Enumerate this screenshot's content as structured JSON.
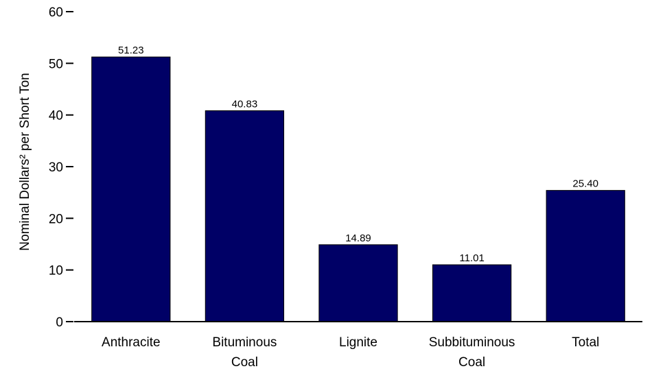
{
  "chart_data": {
    "type": "bar",
    "categories": [
      [
        "Anthracite"
      ],
      [
        "Bituminous",
        "Coal"
      ],
      [
        "Lignite"
      ],
      [
        "Subbituminous",
        "Coal"
      ],
      [
        "Total"
      ]
    ],
    "values": [
      51.23,
      40.83,
      14.89,
      11.01,
      25.4
    ],
    "value_labels": [
      "51.23",
      "40.83",
      "14.89",
      "11.01",
      "25.40"
    ],
    "ylabel": "Nominal Dollars² per Short Ton",
    "xlabel": "",
    "ylim": [
      0,
      60
    ],
    "yticks": [
      0,
      10,
      20,
      30,
      40,
      50,
      60
    ],
    "grid": false,
    "bar_color": "#000066"
  }
}
